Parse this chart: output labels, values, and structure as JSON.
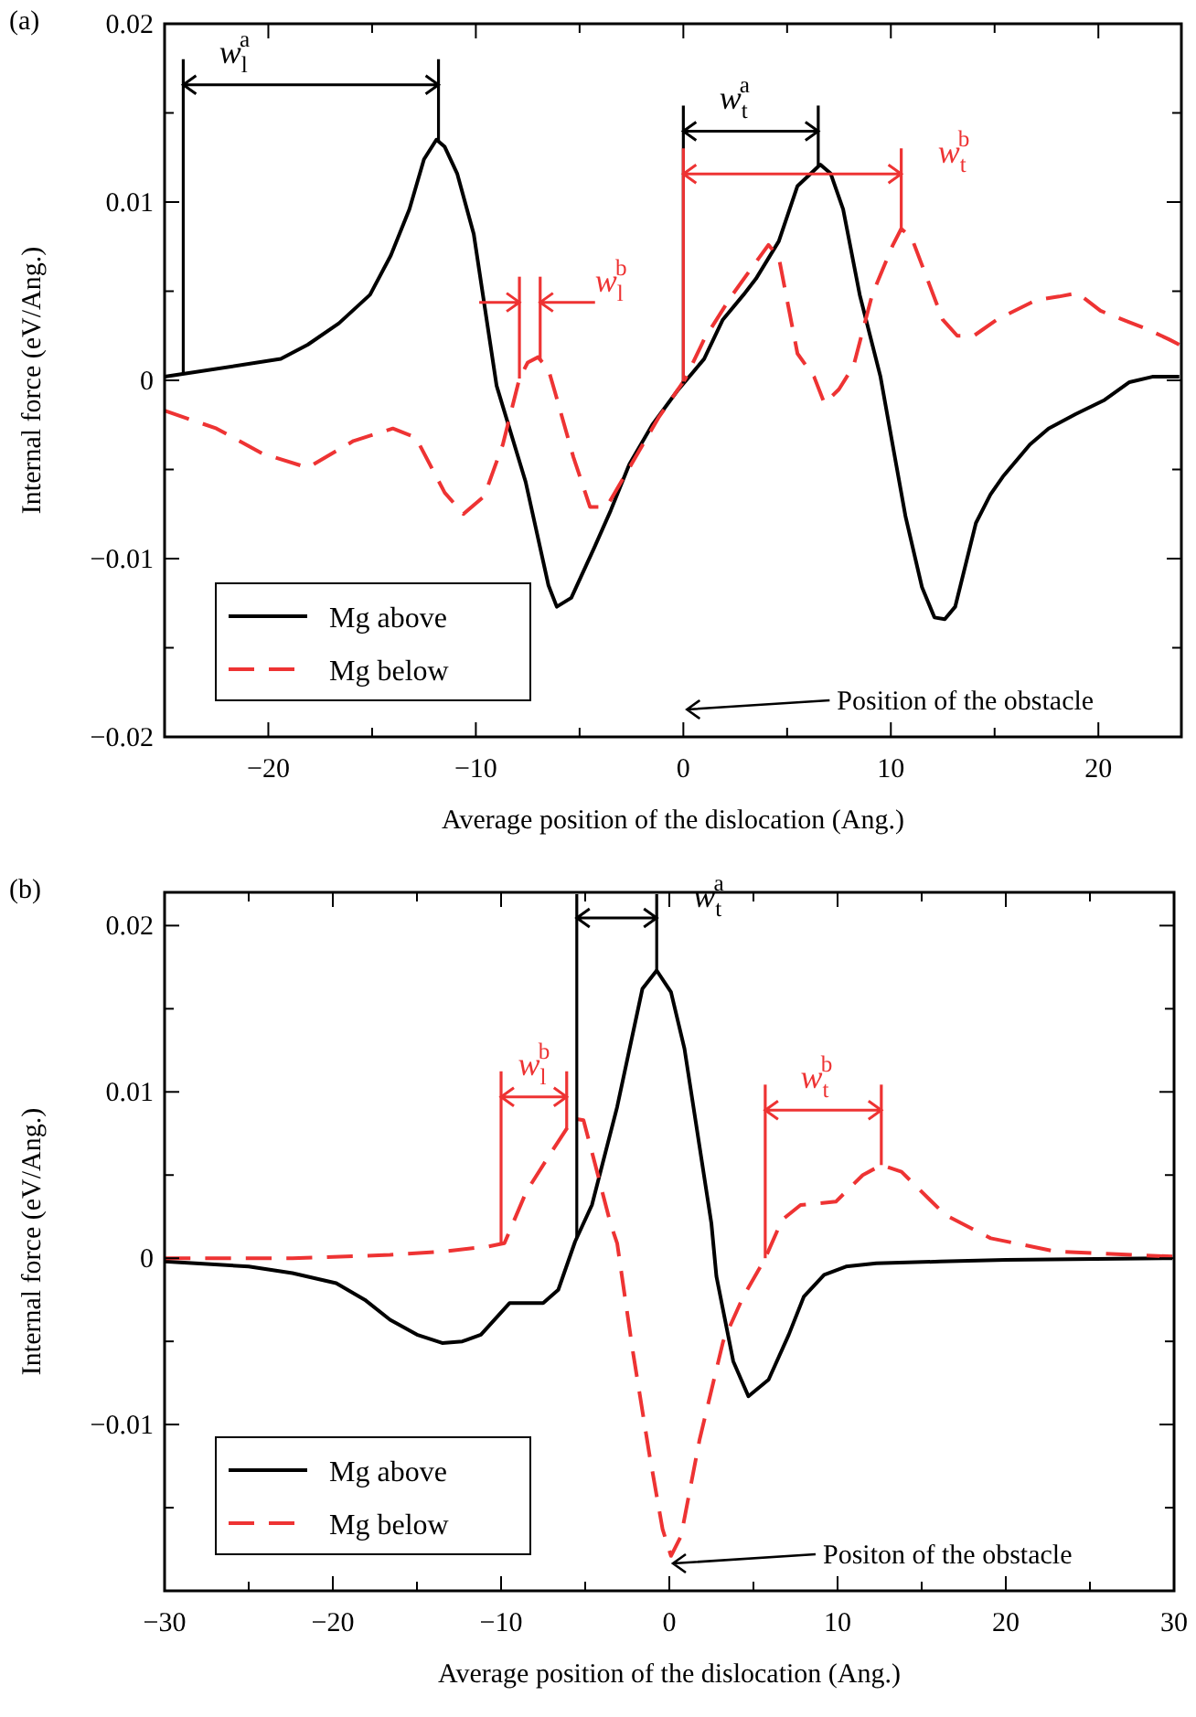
{
  "chart_data": [
    {
      "type": "line",
      "title": "(a)",
      "xlabel": "Average position of the dislocation (Ang.)",
      "ylabel": "Internal force (eV/Ang.)",
      "xlim": [
        -25,
        24
      ],
      "xticks": [
        {
          "value": -25,
          "label": null
        },
        {
          "value": -20,
          "label": "−20"
        },
        {
          "value": -15,
          "label": null
        },
        {
          "value": -10,
          "label": "−10"
        },
        {
          "value": -5,
          "label": null
        },
        0,
        {
          "value": 5,
          "label": null
        },
        10,
        {
          "value": 15,
          "label": null
        },
        20
      ],
      "ylim": [
        -0.02,
        0.02
      ],
      "yticks": [
        {
          "value": -0.02,
          "label": "−0.02"
        },
        {
          "value": -0.015,
          "label": null
        },
        {
          "value": -0.01,
          "label": "−0.01"
        },
        {
          "value": -0.005,
          "label": null
        },
        0,
        {
          "value": 0.005,
          "label": null
        },
        0.01,
        {
          "value": 0.015,
          "label": null
        },
        0.02
      ],
      "grid": false,
      "legend": "bottom left",
      "series": [
        {
          "name": "Mg above",
          "color": "#000000",
          "line_style": "solid",
          "x": [
            -25,
            -19.4,
            -18.1,
            -16.6,
            -15.1,
            -14.1,
            -13.2,
            -12.5,
            -11.9,
            -11.5,
            -10.9,
            -10.1,
            -9,
            -7.6,
            -6.5,
            -6.1,
            -5.4,
            -4.3,
            -3.5,
            -2.6,
            -1.5,
            -0.3,
            1,
            1.9,
            2.9,
            3.5,
            4.6,
            5.5,
            6.6,
            7.1,
            7.7,
            8.5,
            9.5,
            10.7,
            11.5,
            12.1,
            12.6,
            13.1,
            14.1,
            14.8,
            15.4,
            16.7,
            17.6,
            18.9,
            20.3,
            21.5,
            22.6,
            23.9
          ],
          "values": [
            0.0002,
            0.0012,
            0.002,
            0.0032,
            0.0048,
            0.007,
            0.0096,
            0.0124,
            0.0135,
            0.0131,
            0.0116,
            0.0082,
            -0.0003,
            -0.0057,
            -0.0115,
            -0.0127,
            -0.0122,
            -0.0094,
            -0.0073,
            -0.0047,
            -0.0025,
            -0.0006,
            0.0012,
            0.0034,
            0.0048,
            0.0057,
            0.0078,
            0.0109,
            0.0121,
            0.0116,
            0.0096,
            0.0048,
            0.0002,
            -0.0076,
            -0.0116,
            -0.0133,
            -0.0134,
            -0.0127,
            -0.008,
            -0.0064,
            -0.0054,
            -0.0036,
            -0.0027,
            -0.0019,
            -0.0011,
            -0.0001,
            0.0002,
            0.0002
          ]
        },
        {
          "name": "Mg below",
          "color": "#ee3333",
          "line_style": "dashed",
          "x": [
            -25,
            -22.5,
            -20.3,
            -18.1,
            -15.9,
            -14,
            -12.9,
            -11.5,
            -10.6,
            -9.6,
            -8.7,
            -7.9,
            -7.5,
            -7,
            -6.5,
            -6.2,
            -5.3,
            -4.5,
            -3.7,
            -2.1,
            -1.2,
            0.1,
            1,
            2.3,
            4.1,
            4.6,
            5.5,
            6.3,
            6.8,
            7.5,
            8.2,
            9.1,
            10.1,
            10.5,
            11,
            12.5,
            13.2,
            14,
            15.1,
            17,
            18.1,
            19,
            20.1,
            21.4,
            22.3,
            23.4,
            23.9
          ],
          "values": [
            -0.0017,
            -0.0027,
            -0.0041,
            -0.0049,
            -0.0034,
            -0.0027,
            -0.0032,
            -0.0063,
            -0.0075,
            -0.0065,
            -0.0036,
            0.0001,
            0.001,
            0.0013,
            0.0006,
            -0.0006,
            -0.0043,
            -0.0071,
            -0.0071,
            -0.0039,
            -0.0021,
            0.0001,
            0.0023,
            0.0047,
            0.0076,
            0.0069,
            0.0015,
            0.0002,
            -0.0013,
            -0.0005,
            0.0008,
            0.0048,
            0.0076,
            0.0085,
            0.008,
            0.0034,
            0.0025,
            0.0025,
            0.0034,
            0.0045,
            0.0047,
            0.0049,
            0.0039,
            0.0033,
            0.0029,
            0.0023,
            0.002
          ]
        }
      ],
      "ref_lines": [
        {
          "axis": "x",
          "value": -24.1,
          "label": "w$_{l}$$^{a}$",
          "color": "#000000"
        },
        {
          "axis": "x",
          "value": -11.8,
          "color": "#000000"
        },
        {
          "axis": "x",
          "value": 0,
          "label": "w$_{t}$$^{a}$",
          "color": "#000000"
        },
        {
          "axis": "x",
          "value": 6.5,
          "color": "#000000"
        },
        {
          "axis": "x",
          "value": -7.9,
          "label": "w$_{l}$$^{b}$",
          "color": "#ee3333"
        },
        {
          "axis": "x",
          "value": -6.9,
          "color": "#ee3333"
        },
        {
          "axis": "x",
          "value": 0,
          "label": "w$_{t}$$^{b}$",
          "color": "#ee3333"
        },
        {
          "axis": "x",
          "value": 10.5,
          "color": "#ee3333"
        }
      ],
      "annotations": [
        "Position of the obstacle"
      ]
    },
    {
      "type": "line",
      "title": "(b)",
      "xlabel": "Average position of the dislocation (Ang.)",
      "ylabel": "Internal force (eV/Ang.)",
      "xlim": [
        -30,
        30
      ],
      "xticks": [
        {
          "value": -30,
          "label": "−30"
        },
        {
          "value": -25,
          "label": null
        },
        {
          "value": -20,
          "label": "−20"
        },
        {
          "value": -15,
          "label": null
        },
        {
          "value": -10,
          "label": "−10"
        },
        {
          "value": -5,
          "label": null
        },
        0,
        {
          "value": 5,
          "label": null
        },
        10,
        {
          "value": 15,
          "label": null
        },
        20,
        {
          "value": 25,
          "label": null
        },
        30
      ],
      "ylim": [
        -0.02,
        0.022
      ],
      "yticks": [
        {
          "value": -0.015,
          "label": null
        },
        {
          "value": -0.01,
          "label": "−0.01"
        },
        {
          "value": -0.005,
          "label": null
        },
        0,
        {
          "value": 0.005,
          "label": null
        },
        0.01,
        {
          "value": 0.015,
          "label": null
        },
        0.02
      ],
      "grid": false,
      "legend": "bottom left",
      "series": [
        {
          "name": "Mg above",
          "color": "#000000",
          "line_style": "solid",
          "x": [
            -30,
            -25,
            -22.4,
            -19.8,
            -18.1,
            -16.6,
            -15,
            -13.5,
            -12.3,
            -11.2,
            -9.5,
            -7.5,
            -6.6,
            -5.6,
            -4.6,
            -3.1,
            -1.6,
            -0.75,
            0.1,
            0.9,
            2.5,
            2.8,
            3.8,
            4.7,
            5.9,
            7.1,
            8,
            9.2,
            10.5,
            12.3,
            16.1,
            20,
            29.9
          ],
          "values": [
            -0.0002,
            -0.0005,
            -0.0009,
            -0.0015,
            -0.0025,
            -0.0037,
            -0.0046,
            -0.0051,
            -0.005,
            -0.0046,
            -0.0027,
            -0.0027,
            -0.0019,
            0.001,
            0.0032,
            0.0091,
            0.0162,
            0.0173,
            0.016,
            0.0126,
            0.0021,
            -0.0011,
            -0.0062,
            -0.0083,
            -0.0073,
            -0.0046,
            -0.0023,
            -0.001,
            -0.0005,
            -0.0003,
            -0.0002,
            -0.0001,
            0
          ]
        },
        {
          "name": "Mg below",
          "color": "#ee3333",
          "line_style": "dashed",
          "x": [
            -30,
            -22.4,
            -16.6,
            -13.5,
            -10.8,
            -9.8,
            -8.5,
            -7,
            -5.7,
            -5.1,
            -4.5,
            -3.5,
            -3.1,
            -2.2,
            -1.2,
            -0.4,
            0.1,
            0.7,
            1.8,
            3.2,
            4.4,
            5.7,
            6.7,
            7.8,
            9.9,
            11.5,
            12.6,
            13.8,
            16.4,
            19.1,
            23,
            29.9
          ],
          "values": [
            0,
            0,
            0.0002,
            0.0004,
            0.0007,
            0.0009,
            0.004,
            0.0064,
            0.0084,
            0.0083,
            0.006,
            0.0021,
            0.0009,
            -0.0054,
            -0.0117,
            -0.0163,
            -0.0179,
            -0.0167,
            -0.0109,
            -0.005,
            -0.0023,
            0,
            0.0023,
            0.0032,
            0.0034,
            0.005,
            0.0056,
            0.0052,
            0.0026,
            0.0012,
            0.0004,
            0.0001
          ]
        }
      ],
      "ref_lines": [
        {
          "axis": "x",
          "value": -5.5,
          "label": "w$_{t}$$^{a}$",
          "color": "#000000"
        },
        {
          "axis": "x",
          "value": -0.75,
          "color": "#000000"
        },
        {
          "axis": "x",
          "value": -10,
          "label": "w$_{l}$$^{b}$",
          "color": "#ee3333"
        },
        {
          "axis": "x",
          "value": -6.1,
          "color": "#ee3333"
        },
        {
          "axis": "x",
          "value": 5.7,
          "label": "w$_{t}$$^{b}$",
          "color": "#ee3333"
        },
        {
          "axis": "x",
          "value": 12.6,
          "color": "#ee3333"
        }
      ],
      "annotations": [
        "Positon of the obstacle"
      ]
    }
  ]
}
